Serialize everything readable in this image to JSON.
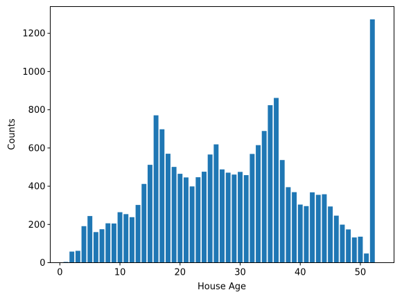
{
  "chart_data": {
    "type": "bar",
    "title": "",
    "xlabel": "House Age",
    "ylabel": "Counts",
    "x": [
      1,
      2,
      3,
      4,
      5,
      6,
      7,
      8,
      9,
      10,
      11,
      12,
      13,
      14,
      15,
      16,
      17,
      18,
      19,
      20,
      21,
      22,
      23,
      24,
      25,
      26,
      27,
      28,
      29,
      30,
      31,
      32,
      33,
      34,
      35,
      36,
      37,
      38,
      39,
      40,
      41,
      42,
      43,
      44,
      45,
      46,
      47,
      48,
      49,
      50,
      51,
      52
    ],
    "values": [
      4,
      58,
      62,
      191,
      244,
      160,
      175,
      206,
      205,
      264,
      254,
      238,
      302,
      412,
      512,
      771,
      698,
      570,
      501,
      465,
      446,
      399,
      447,
      476,
      566,
      619,
      488,
      471,
      461,
      475,
      458,
      569,
      615,
      689,
      824,
      862,
      537,
      395,
      369,
      304,
      296,
      368,
      355,
      358,
      294,
      246,
      199,
      174,
      132,
      136,
      48,
      1273
    ],
    "xlim": [
      -1.6,
      55.6
    ],
    "ylim": [
      0,
      1340
    ],
    "xticks": [
      0,
      10,
      20,
      30,
      40,
      50
    ],
    "yticks": [
      0,
      200,
      400,
      600,
      800,
      1000,
      1200
    ],
    "grid": false,
    "bar_color": "#1f77b4"
  }
}
